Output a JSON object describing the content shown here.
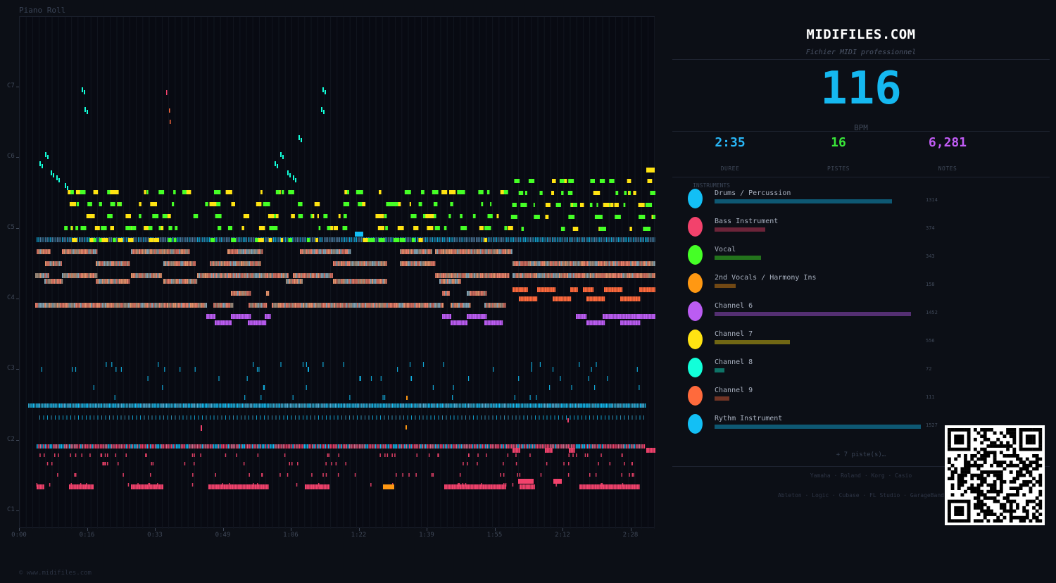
{
  "piano_roll": {
    "title": "Piano Roll",
    "y_labels": [
      "C7",
      "C6",
      "C5",
      "C4",
      "C3",
      "C2",
      "C1"
    ],
    "time_labels": [
      "0:00",
      "0:16",
      "0:33",
      "0:49",
      "1:06",
      "1:22",
      "1:39",
      "1:55",
      "2:12",
      "2:28"
    ],
    "copyright": "© www.midifiles.com"
  },
  "panel": {
    "brand": "MIDIFILES.COM",
    "subtitle": "Fichier MIDI professionnel",
    "bpm": "116",
    "bpm_label": "BPM",
    "stats": [
      {
        "value": "2:35",
        "label": "DUREE",
        "color": "#29b6f6"
      },
      {
        "value": "16",
        "label": "PISTES",
        "color": "#39e639"
      },
      {
        "value": "6,281",
        "label": "NOTES",
        "color": "#c15cf5"
      }
    ],
    "instruments_label": "INSTRUMENTS",
    "instruments": [
      {
        "name": "Drums / Percussion",
        "count": "1314",
        "color": "#13bff5",
        "share": 0.86
      },
      {
        "name": "Bass Instrument",
        "count": "374",
        "color": "#f2426c",
        "share": 0.245
      },
      {
        "name": "Vocal",
        "count": "343",
        "color": "#45ff26",
        "share": 0.225
      },
      {
        "name": "2nd Vocals / Harmony Ins",
        "count": "158",
        "color": "#ff9812",
        "share": 0.104
      },
      {
        "name": "Channel 6",
        "count": "1452",
        "color": "#bb5cf2",
        "share": 0.951
      },
      {
        "name": "Channel 7",
        "count": "556",
        "color": "#ffe312",
        "share": 0.364
      },
      {
        "name": "Channel 8",
        "count": "72",
        "color": "#12ffd9",
        "share": 0.047
      },
      {
        "name": "Channel 9",
        "count": "111",
        "color": "#ff6a3c",
        "share": 0.073
      },
      {
        "name": "Rythm Instrument",
        "count": "1527",
        "color": "#13bff5",
        "share": 1.0
      }
    ],
    "more_tracks": "+ 7 piste(s)…",
    "brands_line": "Yamaha · Roland · Korg · Casio",
    "daw_line": "Ableton · Logic · Cubase · FL Studio · GarageBand"
  }
}
